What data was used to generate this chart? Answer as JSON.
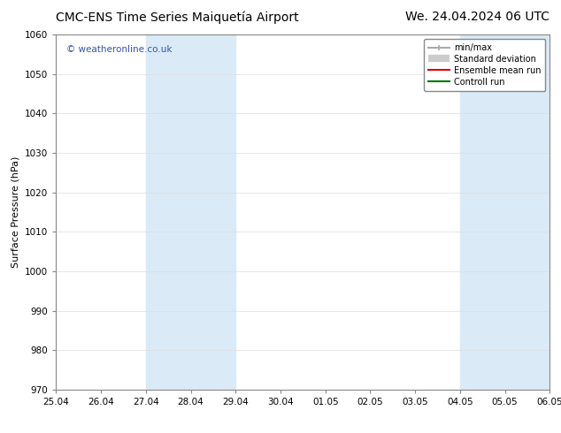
{
  "title_left": "CMC-ENS Time Series Maiquetía Airport",
  "title_right": "We. 24.04.2024 06 UTC",
  "ylabel": "Surface Pressure (hPa)",
  "ylim": [
    970,
    1060
  ],
  "yticks": [
    970,
    980,
    990,
    1000,
    1010,
    1020,
    1030,
    1040,
    1050,
    1060
  ],
  "xtick_labels": [
    "25.04",
    "26.04",
    "27.04",
    "28.04",
    "29.04",
    "30.04",
    "01.05",
    "02.05",
    "03.05",
    "04.05",
    "05.05",
    "06.05"
  ],
  "xtick_positions": [
    0,
    1,
    2,
    3,
    4,
    5,
    6,
    7,
    8,
    9,
    10,
    11
  ],
  "shaded_regions": [
    {
      "x_start": 2,
      "x_end": 4,
      "color": "#daeaf7"
    },
    {
      "x_start": 9,
      "x_end": 11,
      "color": "#daeaf7"
    }
  ],
  "watermark_text": "© weatheronline.co.uk",
  "watermark_color": "#3355aa",
  "legend_entries": [
    {
      "label": "min/max",
      "color": "#aaaaaa",
      "lw": 1.5
    },
    {
      "label": "Standard deviation",
      "color": "#cccccc",
      "lw": 5
    },
    {
      "label": "Ensemble mean run",
      "color": "#dd0000",
      "lw": 1.5
    },
    {
      "label": "Controll run",
      "color": "#007700",
      "lw": 1.5
    }
  ],
  "bg_color": "#ffffff",
  "grid_color": "#dddddd",
  "title_fontsize": 10,
  "axis_label_fontsize": 8,
  "tick_fontsize": 7.5
}
